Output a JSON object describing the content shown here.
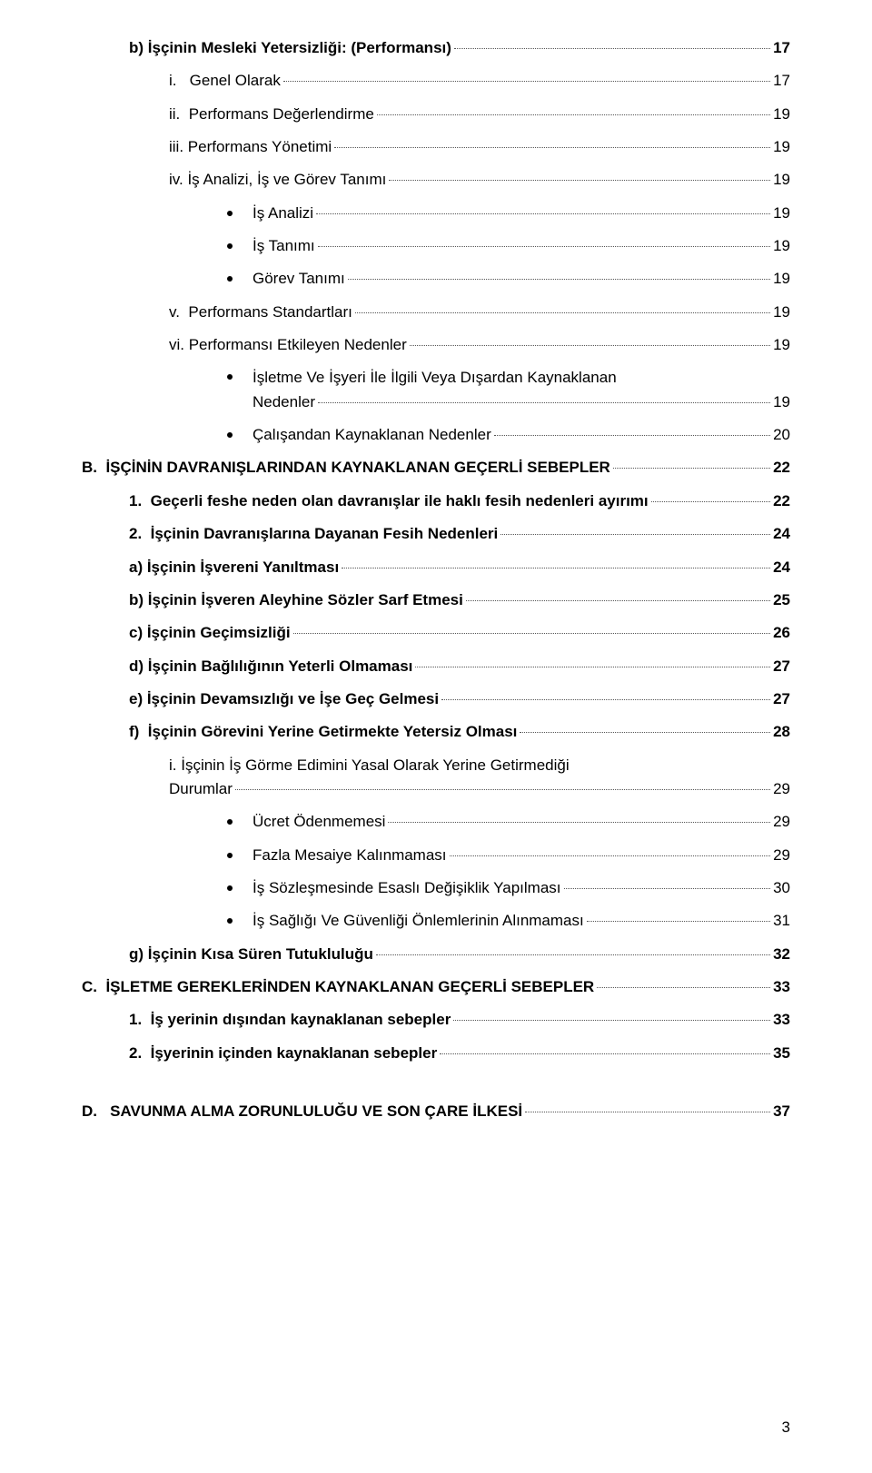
{
  "typography": {
    "base_font_family": "Arial",
    "base_font_size_pt": 13,
    "text_color": "#000000",
    "background_color": "#ffffff",
    "leader_color": "#555555"
  },
  "page_number": "3",
  "toc": [
    {
      "indent": "ind2",
      "bold": true,
      "label": "b) İşçinin Mesleki Yetersizliği: (Performansı)",
      "page": "17"
    },
    {
      "indent": "ind3",
      "label": "i.   Genel Olarak",
      "page": "17"
    },
    {
      "indent": "ind3",
      "label": "ii.  Performans Değerlendirme",
      "page": "19"
    },
    {
      "indent": "ind3",
      "label": "iii. Performans Yönetimi",
      "page": "19"
    },
    {
      "indent": "ind3",
      "label": "iv. İş Analizi, İş ve Görev Tanımı",
      "page": "19"
    },
    {
      "indent": "ind5",
      "bullet": "dot",
      "label": "İş Analizi",
      "page": "19"
    },
    {
      "indent": "ind5",
      "bullet": "dot",
      "label": "İş Tanımı",
      "page": "19"
    },
    {
      "indent": "ind5",
      "bullet": "dot",
      "label": "Görev Tanımı",
      "page": "19"
    },
    {
      "indent": "ind3",
      "label": "v.  Performans Standartları",
      "page": "19"
    },
    {
      "indent": "ind3",
      "label": "vi. Performansı Etkileyen Nedenler",
      "page": "19"
    },
    {
      "indent": "ind5",
      "bullet": "dot",
      "wrap": true,
      "label1": "İşletme Ve İşyeri İle İlgili Veya Dışardan Kaynaklanan",
      "label2": "Nedenler",
      "page": "19"
    },
    {
      "indent": "ind5",
      "bullet": "dot",
      "label": "Çalışandan Kaynaklanan Nedenler",
      "page": "20"
    },
    {
      "indent": "ind0",
      "bold": true,
      "label": "B.  İŞÇİNİN DAVRANIŞLARINDAN KAYNAKLANAN GEÇERLİ SEBEPLER",
      "page": "22"
    },
    {
      "indent": "ind1",
      "bold": true,
      "label": "1.  Geçerli feshe neden olan davranışlar ile haklı fesih nedenleri ayırımı",
      "page": "22"
    },
    {
      "indent": "ind1",
      "bold": true,
      "label": "2.  İşçinin Davranışlarına Dayanan Fesih Nedenleri",
      "page": "24"
    },
    {
      "indent": "ind6",
      "bold": true,
      "label": "a) İşçinin İşvereni Yanıltması",
      "page": "24"
    },
    {
      "indent": "ind6",
      "bold": true,
      "label": "b) İşçinin İşveren Aleyhine Sözler Sarf Etmesi",
      "page": "25"
    },
    {
      "indent": "ind6",
      "bold": true,
      "label": "c) İşçinin Geçimsizliği",
      "page": "26"
    },
    {
      "indent": "ind6",
      "bold": true,
      "label": "d) İşçinin Bağlılığının Yeterli Olmaması",
      "page": "27"
    },
    {
      "indent": "ind6",
      "bold": true,
      "label": "e) İşçinin Devamsızlığı ve İşe Geç Gelmesi",
      "page": "27"
    },
    {
      "indent": "ind6",
      "bold": true,
      "label": "f)  İşçinin Görevini Yerine Getirmekte Yetersiz Olması",
      "page": "28"
    },
    {
      "indent": "ind7",
      "wrap": true,
      "label1": "i.   İşçinin İş Görme Edimini Yasal Olarak Yerine Getirmediği",
      "label2": "Durumlar",
      "page": "29"
    },
    {
      "indent": "ind9",
      "bullet": "dot",
      "label": "Ücret Ödenmemesi",
      "page": "29"
    },
    {
      "indent": "ind9",
      "bullet": "dot",
      "label": "Fazla Mesaiye Kalınmaması",
      "page": "29"
    },
    {
      "indent": "ind9",
      "bullet": "dot",
      "label": "İş Sözleşmesinde Esaslı Değişiklik Yapılması",
      "page": "30"
    },
    {
      "indent": "ind9",
      "bullet": "dot",
      "label": "İş Sağlığı Ve Güvenliği Önlemlerinin Alınmaması",
      "page": "31"
    },
    {
      "indent": "ind6",
      "bold": true,
      "label": "g) İşçinin Kısa Süren Tutukluluğu",
      "page": "32"
    },
    {
      "indent": "ind0",
      "bold": true,
      "label": "C.  İŞLETME GEREKLERİNDEN KAYNAKLANAN GEÇERLİ SEBEPLER",
      "page": "33"
    },
    {
      "indent": "ind10",
      "bold": true,
      "label": "1.  İş yerinin dışından kaynaklanan sebepler",
      "page": "33"
    },
    {
      "indent": "ind10",
      "bold": true,
      "label": "2.  İşyerinin içinden kaynaklanan sebepler",
      "page": "35"
    }
  ],
  "gap_before_last": true,
  "last_line": {
    "indent": "ind0",
    "bold": true,
    "label": "D.   SAVUNMA ALMA ZORUNLULUĞU VE SON ÇARE İLKESİ",
    "page": "37"
  }
}
